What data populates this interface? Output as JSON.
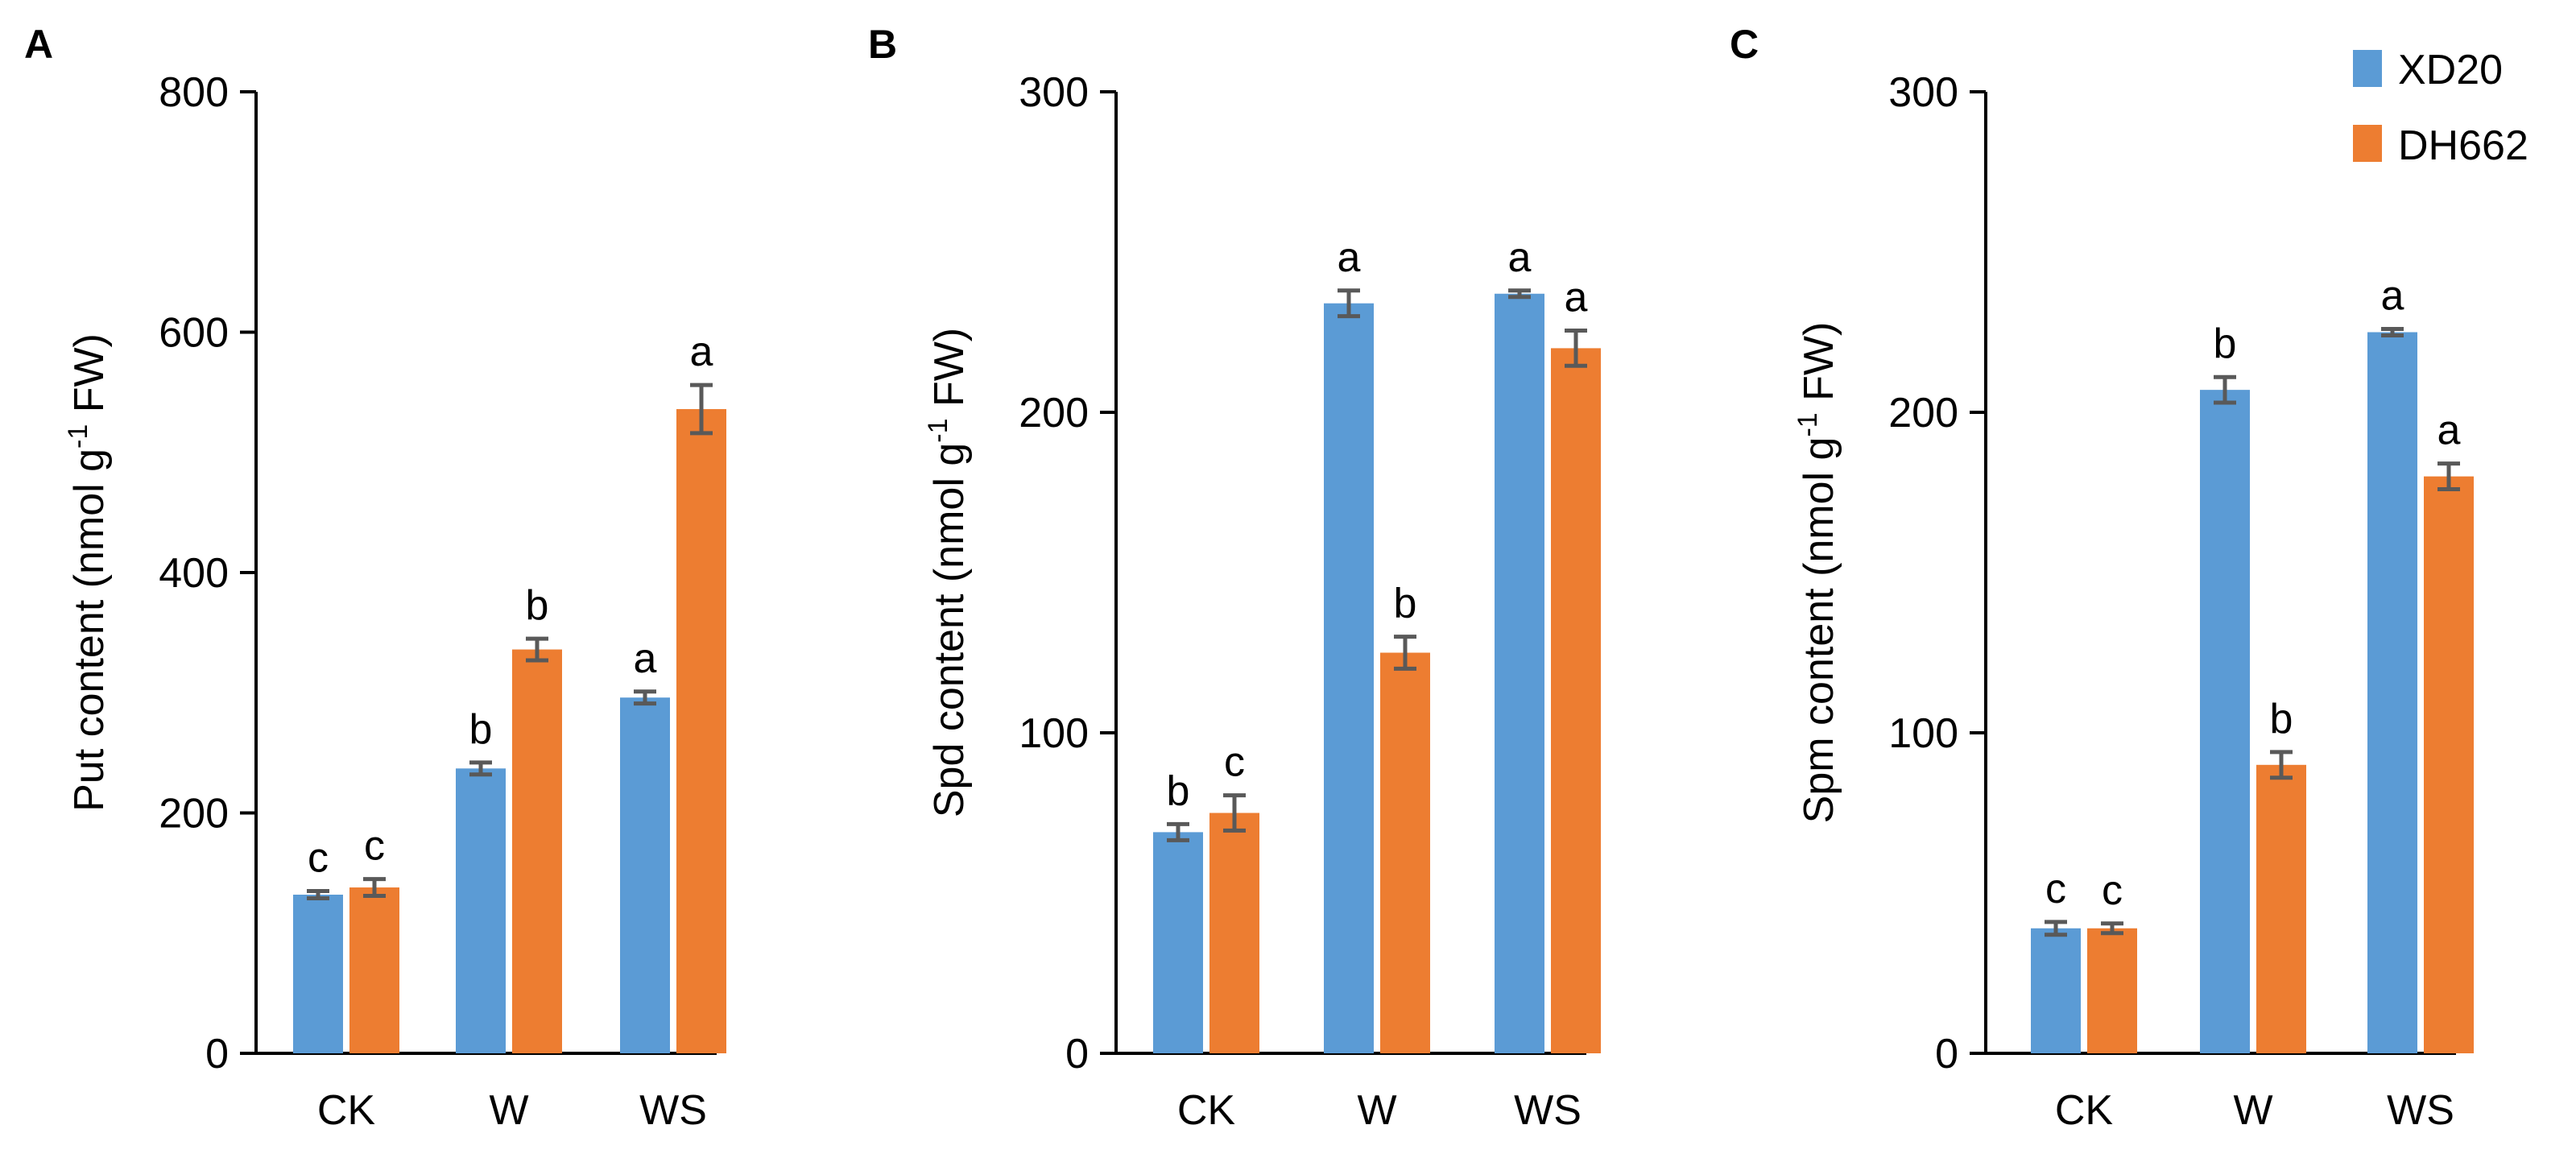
{
  "figure": {
    "legend": [
      {
        "name": "XD20",
        "color": "#5B9BD5"
      },
      {
        "name": "DH662",
        "color": "#ED7D31"
      }
    ]
  },
  "chart_data": [
    {
      "panel": "A",
      "type": "bar",
      "ylabel": "Put content (nmol g-1 FW)",
      "ylabel_parts": {
        "pre": "Put content (nmol g",
        "sup": "-1",
        "post": " FW)"
      },
      "ylim": [
        0,
        800
      ],
      "yticks": [
        0,
        200,
        400,
        600,
        800
      ],
      "categories": [
        "CK",
        "W",
        "WS"
      ],
      "series": [
        {
          "name": "XD20",
          "values": [
            132,
            237,
            296
          ],
          "errors": [
            3,
            5,
            5
          ],
          "labels": [
            "c",
            "b",
            "a"
          ]
        },
        {
          "name": "DH662",
          "values": [
            138,
            336,
            536
          ],
          "errors": [
            7,
            9,
            20
          ],
          "labels": [
            "c",
            "b",
            "a"
          ]
        }
      ]
    },
    {
      "panel": "B",
      "type": "bar",
      "ylabel": "Spd content (nmol g-1 FW)",
      "ylabel_parts": {
        "pre": "Spd content (nmol g",
        "sup": "-1",
        "post": " FW)"
      },
      "ylim": [
        0,
        300
      ],
      "yticks": [
        0,
        100,
        200,
        300
      ],
      "categories": [
        "CK",
        "W",
        "WS"
      ],
      "series": [
        {
          "name": "XD20",
          "values": [
            69,
            234,
            237
          ],
          "errors": [
            2.5,
            4,
            1
          ],
          "labels": [
            "b",
            "a",
            "a"
          ]
        },
        {
          "name": "DH662",
          "values": [
            75,
            125,
            220
          ],
          "errors": [
            5.5,
            5,
            5.5
          ],
          "labels": [
            "c",
            "b",
            "a"
          ]
        }
      ]
    },
    {
      "panel": "C",
      "type": "bar",
      "ylabel": "Spm content (nmol g-1 FW)",
      "ylabel_parts": {
        "pre": "Spm content (nmol g",
        "sup": "-1",
        "post": " FW)"
      },
      "ylim": [
        0,
        300
      ],
      "yticks": [
        0,
        100,
        200,
        300
      ],
      "categories": [
        "CK",
        "W",
        "WS"
      ],
      "series": [
        {
          "name": "XD20",
          "values": [
            39,
            207,
            225
          ],
          "errors": [
            2,
            4,
            1
          ],
          "labels": [
            "c",
            "b",
            "a"
          ]
        },
        {
          "name": "DH662",
          "values": [
            39,
            90,
            180
          ],
          "errors": [
            1.5,
            4,
            4
          ],
          "labels": [
            "c",
            "b",
            "a"
          ]
        }
      ]
    }
  ]
}
